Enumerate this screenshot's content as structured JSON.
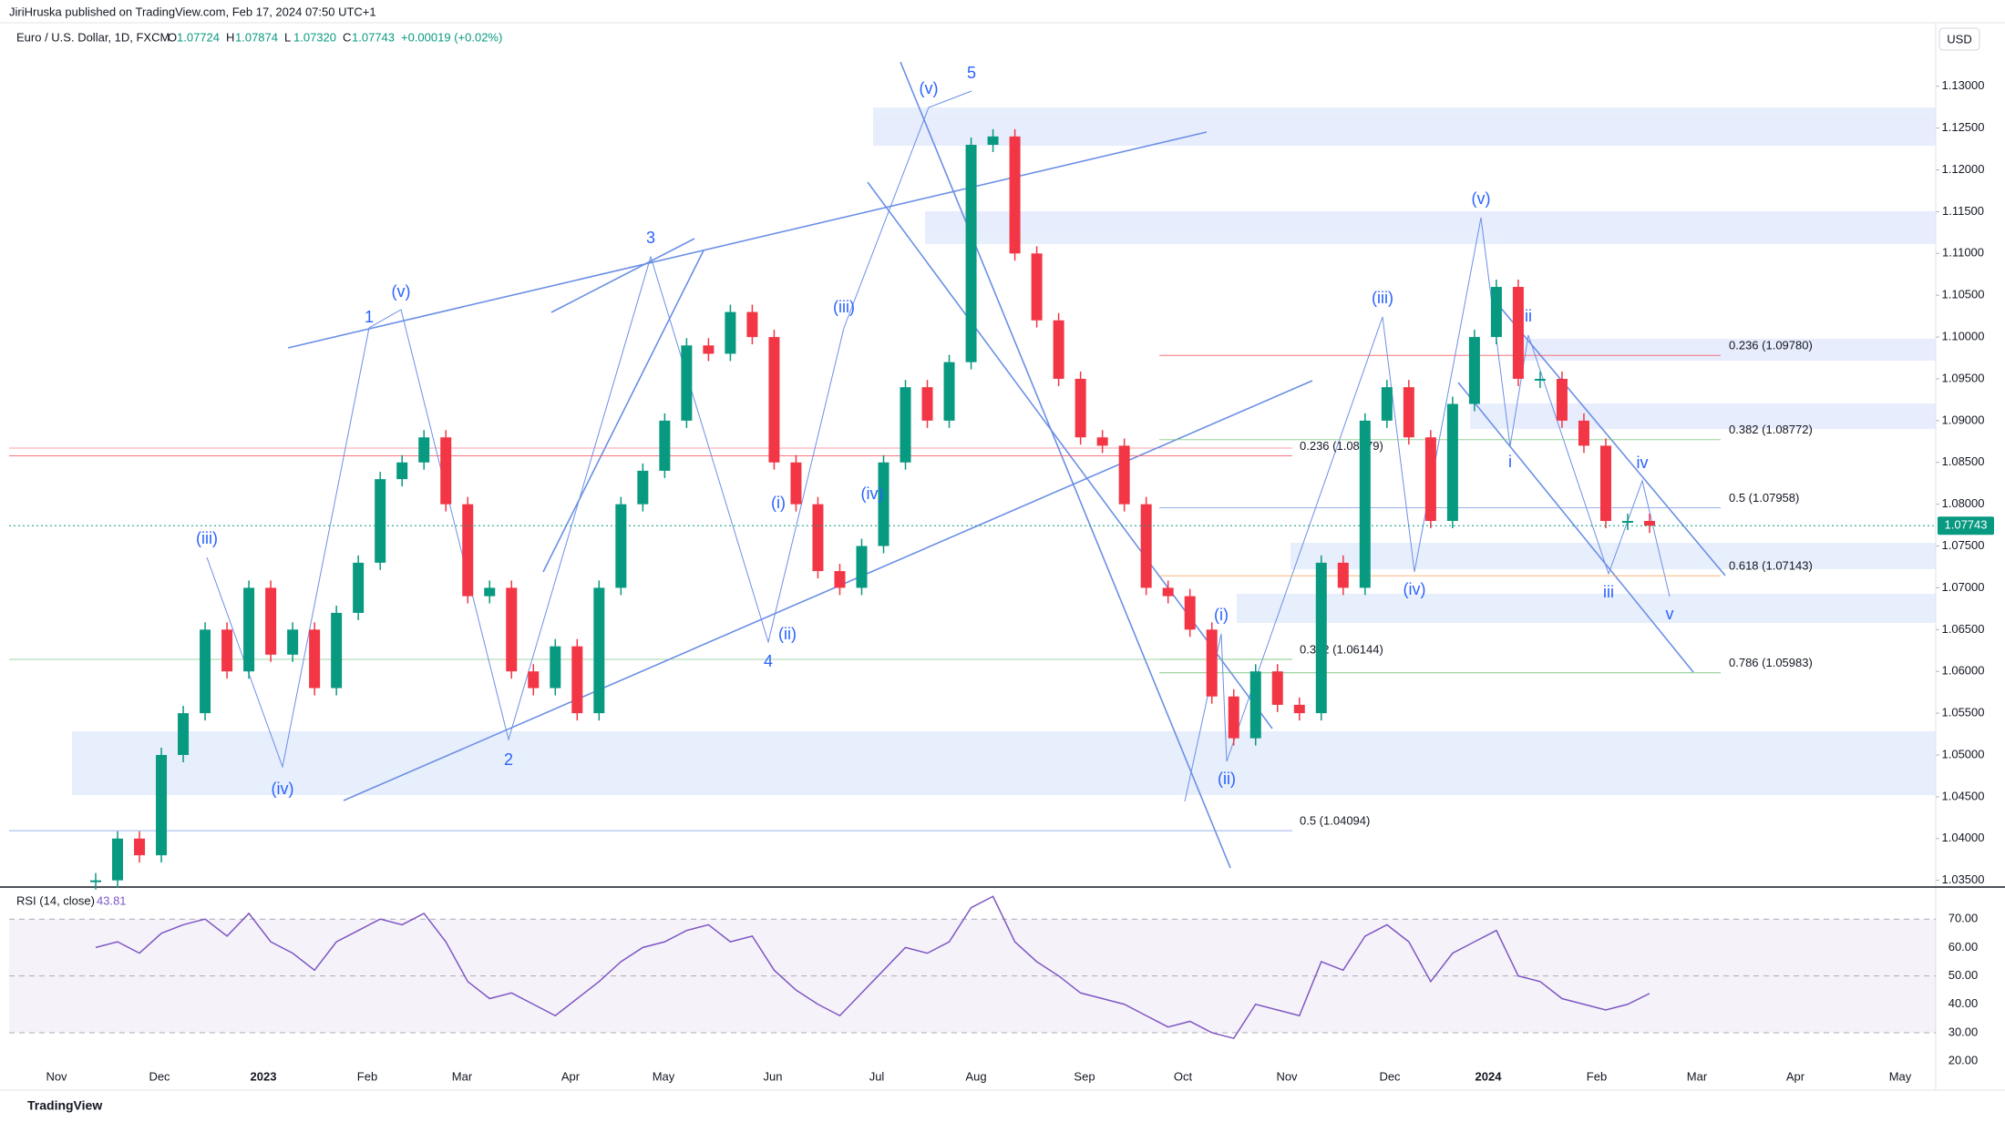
{
  "header": {
    "publisher": "JiriHruska published on TradingView.com, Feb 17, 2024 07:50 UTC+1"
  },
  "legend": {
    "symbol": "Euro / U.S. Dollar, 1D, FXCM",
    "ohlc": [
      {
        "label": "O",
        "value": "1.07724"
      },
      {
        "label": "H",
        "value": "1.07874"
      },
      {
        "label": "L",
        "value": "1.07320"
      },
      {
        "label": "C",
        "value": "1.07743"
      }
    ],
    "change": "+0.00019 (+0.02%)"
  },
  "currency": "USD",
  "last_price": "1.07743",
  "chart_data": {
    "type": "candlestick",
    "values": [
      1.035,
      1.04,
      1.038,
      1.05,
      1.055,
      1.065,
      1.06,
      1.07,
      1.062,
      1.065,
      1.058,
      1.067,
      1.073,
      1.083,
      1.085,
      1.088,
      1.08,
      1.069,
      1.07,
      1.06,
      1.058,
      1.063,
      1.055,
      1.07,
      1.08,
      1.084,
      1.09,
      1.099,
      1.098,
      1.103,
      1.1,
      1.085,
      1.08,
      1.072,
      1.07,
      1.075,
      1.085,
      1.094,
      1.09,
      1.097,
      1.123,
      1.124,
      1.11,
      1.102,
      1.095,
      1.088,
      1.087,
      1.08,
      1.07,
      1.069,
      1.065,
      1.057,
      1.052,
      1.06,
      1.056,
      1.055,
      1.073,
      1.07,
      1.09,
      1.094,
      1.088,
      1.078,
      1.092,
      1.1,
      1.106,
      1.095,
      1.095,
      1.09,
      1.087,
      1.078,
      1.078,
      1.07743
    ],
    "ylim": [
      1.0342,
      1.1376
    ],
    "yticks": [
      {
        "value": 1.13,
        "label": "1.13000"
      },
      {
        "value": 1.125,
        "label": "1.12500"
      },
      {
        "value": 1.12,
        "label": "1.12000"
      },
      {
        "value": 1.115,
        "label": "1.11500"
      },
      {
        "value": 1.11,
        "label": "1.11000"
      },
      {
        "value": 1.105,
        "label": "1.10500"
      },
      {
        "value": 1.1,
        "label": "1.10000"
      },
      {
        "value": 1.095,
        "label": "1.09500"
      },
      {
        "value": 1.09,
        "label": "1.09000"
      },
      {
        "value": 1.085,
        "label": "1.08500"
      },
      {
        "value": 1.08,
        "label": "1.08000"
      },
      {
        "value": 1.075,
        "label": "1.07500"
      },
      {
        "value": 1.07,
        "label": "1.07000"
      },
      {
        "value": 1.065,
        "label": "1.06500"
      },
      {
        "value": 1.06,
        "label": "1.06000"
      },
      {
        "value": 1.055,
        "label": "1.05500"
      },
      {
        "value": 1.05,
        "label": "1.05000"
      },
      {
        "value": 1.045,
        "label": "1.04500"
      },
      {
        "value": 1.04,
        "label": "1.04000"
      },
      {
        "value": 1.035,
        "label": "1.03500"
      }
    ],
    "x_labels": [
      "Nov",
      "Dec",
      "2023",
      "Feb",
      "Mar",
      "Apr",
      "May",
      "Jun",
      "Jul",
      "Aug",
      "Sep",
      "Oct",
      "Nov",
      "Dec",
      "2024",
      "Feb",
      "Mar",
      "Apr",
      "May"
    ],
    "waves": [
      "(iii)",
      "(iv)",
      "1",
      "(v)",
      "2",
      "3",
      "(i)",
      "(ii)",
      "4",
      "(iii)",
      "(iv)",
      "(v)",
      "5",
      "(i)",
      "(ii)",
      "(iii)",
      "(iv)",
      "(v)",
      "ii",
      "i",
      "iv",
      "iii",
      "v"
    ],
    "fibs": [
      {
        "label": "0.236 (1.09780)",
        "price": 1.0978,
        "color": "#f7525f"
      },
      {
        "label": "0.382 (1.08772)",
        "price": 1.08772,
        "color": "#81c784"
      },
      {
        "label": "0.5 (1.07958)",
        "price": 1.07958,
        "color": "#7e9ee6"
      },
      {
        "label": "0.618 (1.07143)",
        "price": 1.07143,
        "color": "#f7a35c"
      },
      {
        "label": "0.786 (1.05983)",
        "price": 1.05983,
        "color": "#66bb6a"
      },
      {
        "label": "0.236 (1.08579)",
        "price": 1.08579,
        "color": "#f7525f"
      },
      {
        "label": "0.382 (1.06144)",
        "price": 1.06144,
        "color": "#81c784"
      },
      {
        "label": "0.5 (1.04094)",
        "price": 1.04094,
        "color": "#7e9ee6"
      }
    ],
    "colors": {
      "up": "#089981",
      "down": "#f23645"
    }
  },
  "rsi": {
    "label": "RSI (14, close)",
    "current": "43.81",
    "values": [
      60,
      62,
      58,
      65,
      68,
      70,
      64,
      72,
      62,
      58,
      52,
      62,
      66,
      70,
      68,
      72,
      62,
      48,
      42,
      44,
      40,
      36,
      42,
      48,
      55,
      60,
      62,
      66,
      68,
      62,
      64,
      52,
      45,
      40,
      36,
      44,
      52,
      60,
      58,
      62,
      74,
      78,
      62,
      55,
      50,
      44,
      42,
      40,
      36,
      32,
      34,
      30,
      28,
      40,
      38,
      36,
      55,
      52,
      64,
      68,
      62,
      48,
      58,
      62,
      66,
      50,
      48,
      42,
      40,
      38,
      40,
      43.81
    ],
    "ylim": [
      17.8,
      80
    ],
    "yticks": [
      {
        "value": 70,
        "label": "70.00"
      },
      {
        "value": 60,
        "label": "60.00"
      },
      {
        "value": 50,
        "label": "50.00"
      },
      {
        "value": 40,
        "label": "40.00"
      },
      {
        "value": 30,
        "label": "30.00"
      },
      {
        "value": 20,
        "label": "20.00"
      }
    ],
    "color": "#7e57c2"
  },
  "footer": {
    "brand": "TradingView"
  }
}
